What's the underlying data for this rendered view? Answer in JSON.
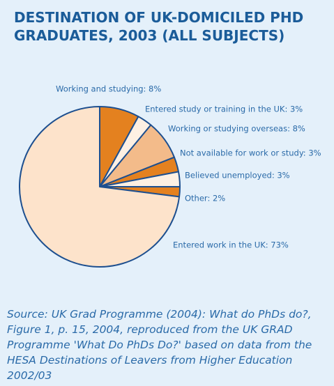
{
  "chart_data": {
    "type": "pie",
    "title": "DESTINATION OF UK-DOMICILED PHD GRADUATES, 2003 (ALL SUBJECTS)",
    "labels": [
      "Working and studying: 8%",
      "Entered study or training in the UK: 3%",
      "Working or studying overseas: 8%",
      "Not available for work or study: 3%",
      "Believed unemployed: 3%",
      "Other: 2%",
      "Entered work in the UK: 73%"
    ],
    "values": [
      8,
      3,
      8,
      3,
      3,
      2,
      73
    ],
    "colors": [
      "#e4811f",
      "#fdf0e3",
      "#f3bb8a",
      "#e4811f",
      "#fdf0e3",
      "#e4811f",
      "#fde3cb"
    ],
    "source": "Source: UK Grad Programme (2004): What do PhDs do?, Figure 1, p. 15, 2004, reproduced from the UK GRAD Programme 'What Do PhDs Do?' based on data from the HESA Destinations of Leavers from Higher Education 2002/03"
  }
}
